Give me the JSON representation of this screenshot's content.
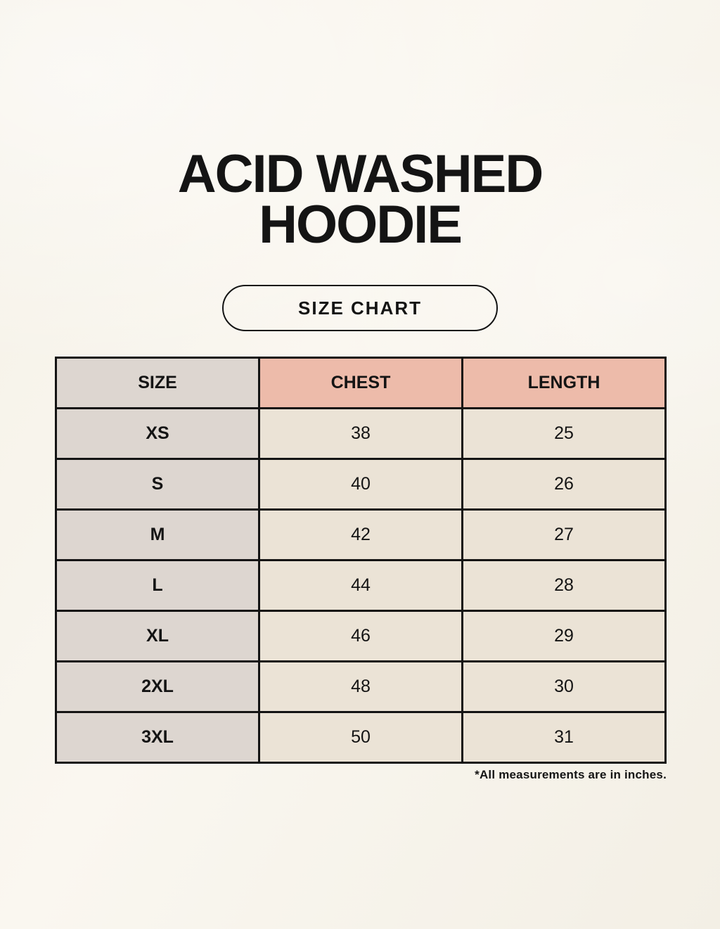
{
  "page": {
    "title_line1": "ACID WASHED",
    "title_line2": "HOODIE",
    "badge_label": "SIZE CHART",
    "footnote": "*All measurements are in inches."
  },
  "chart_data": {
    "type": "table",
    "title": "ACID WASHED HOODIE — SIZE CHART",
    "columns": [
      "SIZE",
      "CHEST",
      "LENGTH"
    ],
    "rows": [
      [
        "XS",
        "38",
        "25"
      ],
      [
        "S",
        "40",
        "26"
      ],
      [
        "M",
        "42",
        "27"
      ],
      [
        "L",
        "44",
        "28"
      ],
      [
        "XL",
        "46",
        "29"
      ],
      [
        "2XL",
        "48",
        "30"
      ],
      [
        "3XL",
        "50",
        "31"
      ]
    ],
    "units": "inches",
    "layout_hints": {
      "header_row_colors": {
        "size_column": "#ddd6d0",
        "measurement_columns": "#edbbaa"
      },
      "body_colors": {
        "size_column": "#ddd6d0",
        "data_cells": "#ebe3d6"
      },
      "grid": "on",
      "border_color": "#141414"
    }
  },
  "colors": {
    "background": "#f8f4ec",
    "header_pink": "#edbbaa",
    "size_gray": "#ddd6d0",
    "cell_cream": "#ebe3d6",
    "ink": "#141414"
  }
}
